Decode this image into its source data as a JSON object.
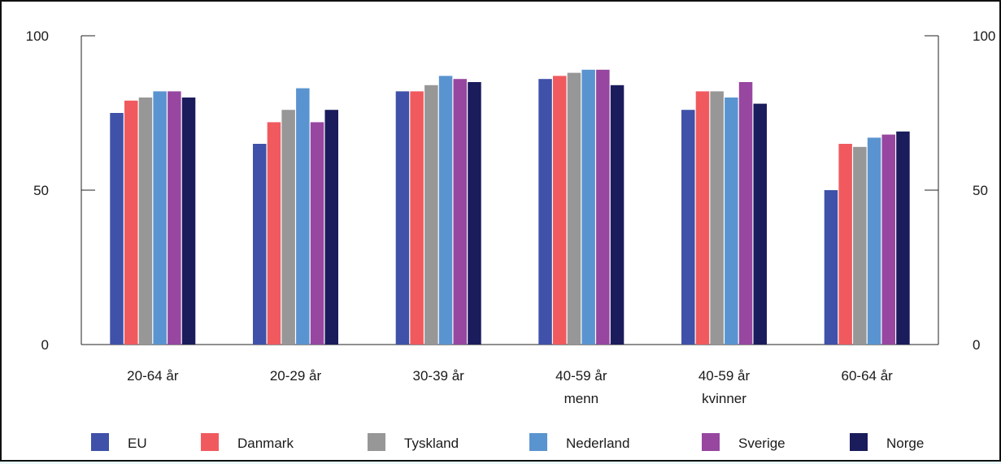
{
  "chart_data": {
    "type": "bar",
    "title": "",
    "xlabel": "",
    "ylabel": "",
    "ylim": [
      0,
      100
    ],
    "yticks": [
      0,
      50,
      100
    ],
    "grid": false,
    "legend_position": "bottom",
    "categories": [
      [
        "20-64 år"
      ],
      [
        "20-29 år"
      ],
      [
        "30-39 år"
      ],
      [
        "40-59 år",
        "menn"
      ],
      [
        "40-59 år",
        "kvinner"
      ],
      [
        "60-64 år"
      ]
    ],
    "series": [
      {
        "name": "EU",
        "color": "#3f51a8",
        "values": [
          75,
          65,
          82,
          86,
          76,
          50
        ]
      },
      {
        "name": "Danmark",
        "color": "#f05a5e",
        "values": [
          79,
          72,
          82,
          87,
          82,
          65
        ]
      },
      {
        "name": "Tyskland",
        "color": "#979797",
        "values": [
          80,
          76,
          84,
          88,
          82,
          64
        ]
      },
      {
        "name": "Nederland",
        "color": "#5a94d0",
        "values": [
          82,
          83,
          87,
          89,
          80,
          67
        ]
      },
      {
        "name": "Sverige",
        "color": "#9747a0",
        "values": [
          82,
          72,
          86,
          89,
          85,
          68
        ]
      },
      {
        "name": "Norge",
        "color": "#1b1c5c",
        "values": [
          80,
          76,
          85,
          84,
          78,
          69
        ]
      }
    ]
  }
}
